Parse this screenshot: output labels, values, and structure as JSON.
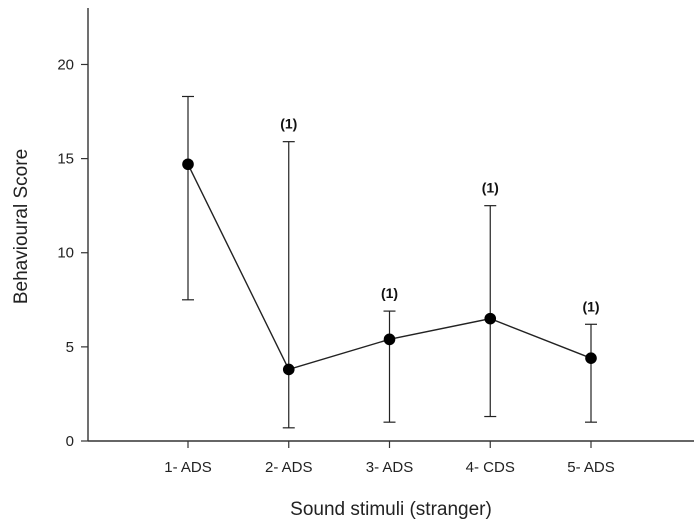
{
  "chart_data": {
    "type": "line",
    "title": "",
    "xlabel": "Sound stimuli (stranger)",
    "ylabel": "Behavioural Score",
    "categories": [
      "1- ADS",
      "2- ADS",
      "3- ADS",
      "4- CDS",
      "5- ADS"
    ],
    "values": [
      14.7,
      3.8,
      5.4,
      6.5,
      4.4
    ],
    "error_low": [
      7.5,
      0.7,
      1.0,
      1.3,
      1.0
    ],
    "error_high": [
      18.3,
      15.9,
      6.9,
      12.5,
      6.2
    ],
    "annotations": [
      "",
      "(1)",
      "(1)",
      "(1)",
      "(1)"
    ],
    "ylim": [
      0,
      23
    ],
    "yticks": [
      0,
      5,
      10,
      15,
      20
    ],
    "grid": false,
    "legend": "none"
  }
}
